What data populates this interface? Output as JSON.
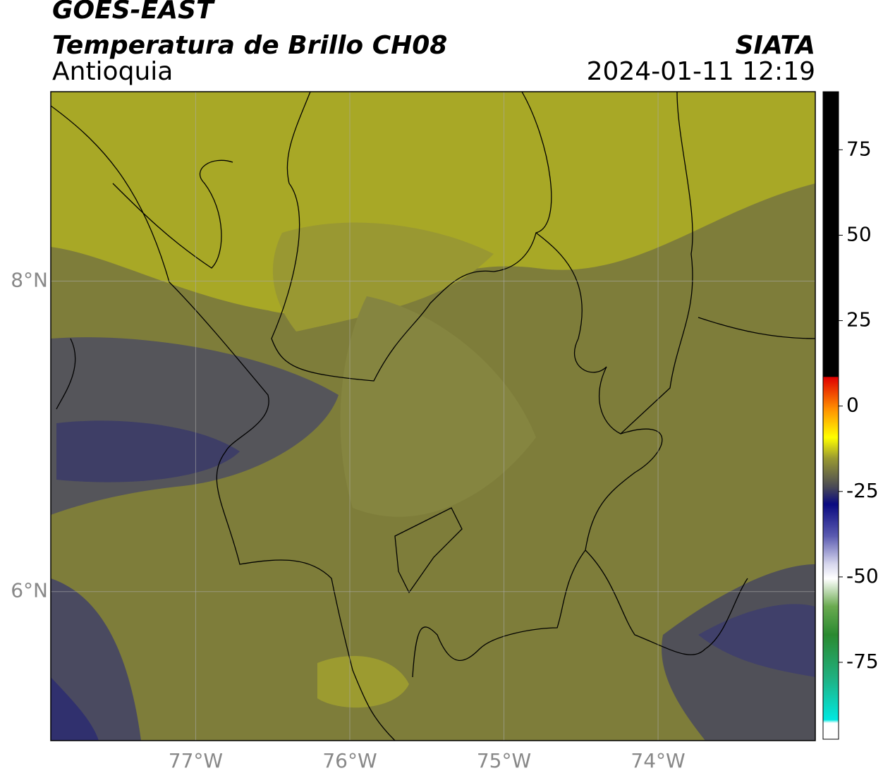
{
  "map": {
    "title": "GOES-EAST",
    "subtitle": "Temperatura de Brillo CH08",
    "region": "Antioquia",
    "source": "SIATA",
    "datetime": "2024-01-11 12:19",
    "xlim": [
      -77.94,
      -72.98
    ],
    "ylim": [
      5.04,
      9.22
    ],
    "xticks": [
      {
        "value": -77,
        "label": "77°W"
      },
      {
        "value": -76,
        "label": "76°W"
      },
      {
        "value": -75,
        "label": "75°W"
      },
      {
        "value": -74,
        "label": "74°W"
      }
    ],
    "yticks": [
      {
        "value": 6,
        "label": "6°N"
      },
      {
        "value": 8,
        "label": "8°N"
      }
    ],
    "grid": true,
    "colorbar": {
      "lim": [
        -97.5,
        92
      ],
      "ticks": [
        -75,
        -50,
        -25,
        0,
        25,
        50,
        75
      ]
    }
  }
}
